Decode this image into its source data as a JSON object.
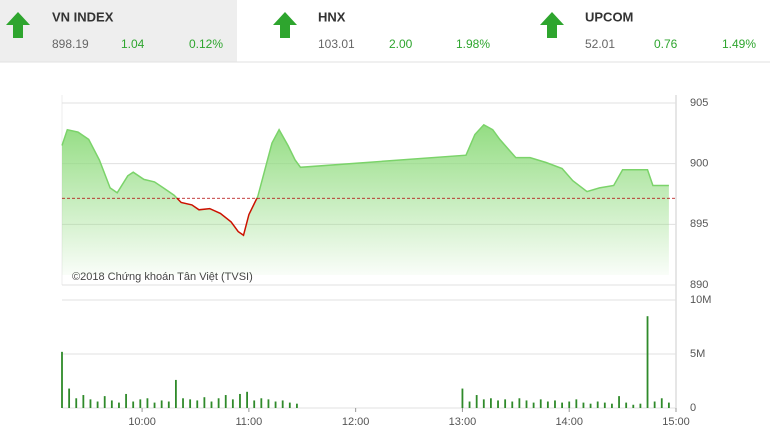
{
  "header": {
    "tiles": [
      {
        "name": "VN INDEX",
        "value": "898.19",
        "change": "1.04",
        "pct": "0.12%"
      },
      {
        "name": "HNX",
        "value": "103.01",
        "change": "2.00",
        "pct": "1.98%"
      },
      {
        "name": "UPCOM",
        "value": "52.01",
        "change": "0.76",
        "pct": "1.49%"
      }
    ]
  },
  "chart_data": [
    {
      "type": "area",
      "annotation": "©2018 Chứng khoán Tân Việt (TVSI)",
      "color": "#7bd36a",
      "below_color": "#cc1100",
      "reference_line": 897.15,
      "x": [
        555,
        558,
        564,
        570,
        576,
        582,
        586,
        592,
        595,
        601,
        607,
        612,
        618,
        622,
        628,
        632,
        638,
        644,
        650,
        654,
        657,
        660,
        665,
        669,
        673,
        677,
        682,
        686,
        689,
        782,
        787,
        792,
        797,
        801,
        810,
        818,
        827,
        836,
        842,
        850,
        857,
        865,
        870,
        884,
        887,
        896
      ],
      "values": [
        901.5,
        902.8,
        902.6,
        902,
        900.3,
        898,
        897.6,
        899,
        899.3,
        898.7,
        898.5,
        898,
        897.4,
        896.8,
        896.6,
        896.2,
        896.3,
        895.9,
        895.2,
        894.4,
        894.1,
        895.8,
        897.3,
        899.5,
        901.7,
        902.8,
        901.5,
        900.3,
        899.7,
        900.7,
        902.4,
        903.2,
        902.8,
        902,
        900.5,
        900.5,
        900.1,
        899.6,
        898.6,
        897.7,
        898,
        898.2,
        899.5,
        899.5,
        898.2,
        898.2
      ],
      "xlim": [
        555,
        900
      ],
      "ylim": [
        890,
        905
      ],
      "yticks": [
        890,
        895,
        900,
        905
      ],
      "grid": true
    },
    {
      "type": "bar",
      "color": "#2f8a2a",
      "x": [
        555,
        559,
        563,
        567,
        571,
        575,
        579,
        583,
        587,
        591,
        595,
        599,
        603,
        607,
        611,
        615,
        619,
        623,
        627,
        631,
        635,
        639,
        643,
        647,
        651,
        655,
        659,
        663,
        667,
        671,
        675,
        679,
        683,
        687,
        780,
        784,
        788,
        792,
        796,
        800,
        804,
        808,
        812,
        816,
        820,
        824,
        828,
        832,
        836,
        840,
        844,
        848,
        852,
        856,
        860,
        864,
        868,
        872,
        876,
        880,
        884,
        888,
        892,
        896
      ],
      "values": [
        5.2,
        1.8,
        0.9,
        1.2,
        0.8,
        0.6,
        1.1,
        0.7,
        0.5,
        1.3,
        0.6,
        0.8,
        0.9,
        0.5,
        0.7,
        0.6,
        2.6,
        0.9,
        0.8,
        0.7,
        1.0,
        0.6,
        0.9,
        1.2,
        0.8,
        1.3,
        1.5,
        0.7,
        0.9,
        0.8,
        0.6,
        0.7,
        0.5,
        0.4,
        1.8,
        0.6,
        1.2,
        0.8,
        0.9,
        0.7,
        0.8,
        0.6,
        0.9,
        0.7,
        0.5,
        0.8,
        0.6,
        0.7,
        0.5,
        0.6,
        0.8,
        0.5,
        0.4,
        0.6,
        0.5,
        0.4,
        1.1,
        0.5,
        0.3,
        0.4,
        8.5,
        0.6,
        0.9,
        0.5
      ],
      "xlim": [
        555,
        900
      ],
      "ylim": [
        0,
        10
      ],
      "yticks": [
        0,
        {
          "value": 5,
          "label": "5M"
        },
        {
          "value": 10,
          "label": "10M"
        }
      ],
      "xticks": [
        {
          "value": 600,
          "label": "10:00"
        },
        {
          "value": 660,
          "label": "11:00"
        },
        {
          "value": 720,
          "label": "12:00"
        },
        {
          "value": 780,
          "label": "13:00"
        },
        {
          "value": 840,
          "label": "14:00"
        },
        {
          "value": 900,
          "label": "15:00"
        }
      ],
      "grid": true
    }
  ]
}
